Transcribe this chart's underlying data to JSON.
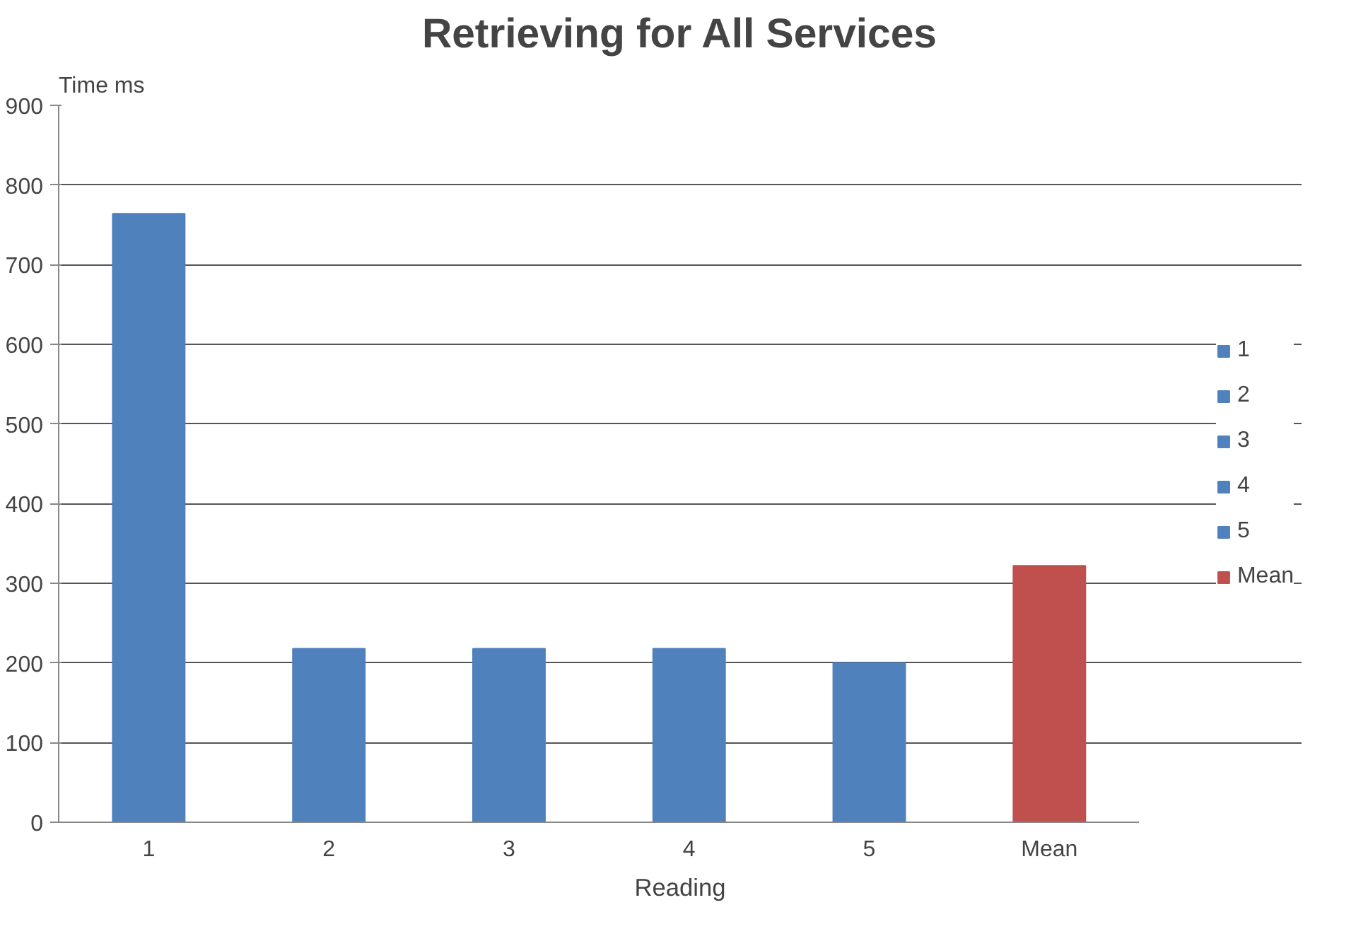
{
  "chart_data": {
    "type": "bar",
    "title": "Retrieving for All Services",
    "xlabel": "Reading",
    "ylabel": "Time ms",
    "categories": [
      "1",
      "2",
      "3",
      "4",
      "5",
      "Mean"
    ],
    "stacked": true,
    "series": [
      {
        "name": "1",
        "color": "#4f81bd",
        "values": [
          764,
          null,
          null,
          null,
          null,
          null
        ]
      },
      {
        "name": "2",
        "color": "#4f81bd",
        "values": [
          null,
          218,
          null,
          null,
          null,
          null
        ]
      },
      {
        "name": "3",
        "color": "#4f81bd",
        "values": [
          null,
          null,
          218,
          null,
          null,
          null
        ]
      },
      {
        "name": "4",
        "color": "#4f81bd",
        "values": [
          null,
          null,
          null,
          218,
          null,
          null
        ]
      },
      {
        "name": "5",
        "color": "#4f81bd",
        "values": [
          null,
          null,
          null,
          null,
          200,
          null
        ]
      },
      {
        "name": "Mean",
        "color": "#c0504d",
        "values": [
          null,
          null,
          null,
          null,
          null,
          322
        ]
      }
    ],
    "ylim": [
      0,
      900
    ],
    "yticks": [
      0,
      100,
      200,
      300,
      400,
      500,
      600,
      700,
      800,
      900
    ],
    "grid": "y",
    "legend": "right"
  }
}
